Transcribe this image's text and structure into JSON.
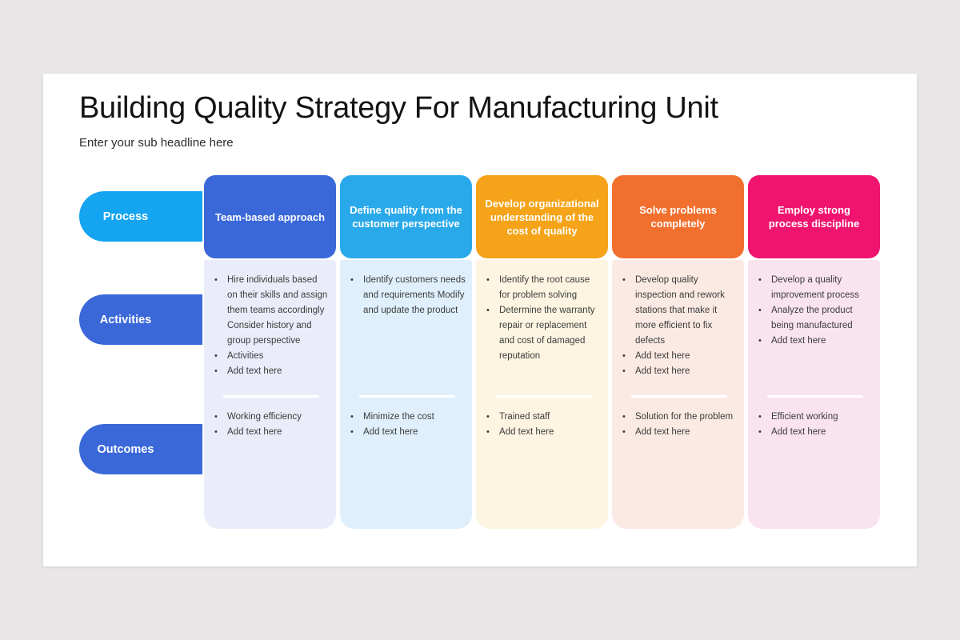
{
  "slide": {
    "title": "Building Quality Strategy For Manufacturing Unit",
    "subtitle": "Enter your sub headline here"
  },
  "rows": [
    {
      "label": "Process",
      "color": "#14a4f0"
    },
    {
      "label": "Activities",
      "color": "#3a68d8"
    },
    {
      "label": "Outcomes",
      "color": "#3a68d8"
    }
  ],
  "columns": [
    {
      "header": "Team-based approach",
      "header_color": "#3a68d8",
      "body_color": "#eaedf9",
      "activities": [
        "Hire individuals based on their skills and assign them teams accordingly Consider history and group perspective",
        "Activities",
        "Add text here"
      ],
      "outcomes": [
        "Working efficiency",
        "Add text here"
      ]
    },
    {
      "header": "Define quality from the customer perspective",
      "header_color": "#29a9e9",
      "body_color": "#dff0fc",
      "activities": [
        "Identify customers needs and requirements Modify and update the product"
      ],
      "outcomes": [
        "Minimize the cost",
        "Add text here"
      ]
    },
    {
      "header": "Develop organizational understanding of the cost of quality",
      "header_color": "#f5a318",
      "body_color": "#fdf5e1",
      "activities": [
        "Identify the root cause for problem solving",
        "Determine the warranty repair or replacement and cost of damaged reputation"
      ],
      "outcomes": [
        "Trained staff",
        "Add text here"
      ]
    },
    {
      "header": "Solve problems completely",
      "header_color": "#f2702e",
      "body_color": "#fbeae4",
      "activities": [
        "Develop quality inspection and rework stations that make it more efficient to fix defects",
        "Add text here",
        "Add text here"
      ],
      "outcomes": [
        "Solution for the problem",
        "Add text here"
      ]
    },
    {
      "header": "Employ strong process discipline",
      "header_color": "#f0146f",
      "body_color": "#f9e3ef",
      "activities": [
        "Develop a quality improvement process",
        "Analyze the product being manufactured",
        "Add text here"
      ],
      "outcomes": [
        "Efficient working",
        "Add text here"
      ]
    }
  ],
  "colors": {
    "background": "#e8e6e7",
    "slide": "#ffffff",
    "bullet_text": "#3c3c3c",
    "title_text": "#131313"
  }
}
